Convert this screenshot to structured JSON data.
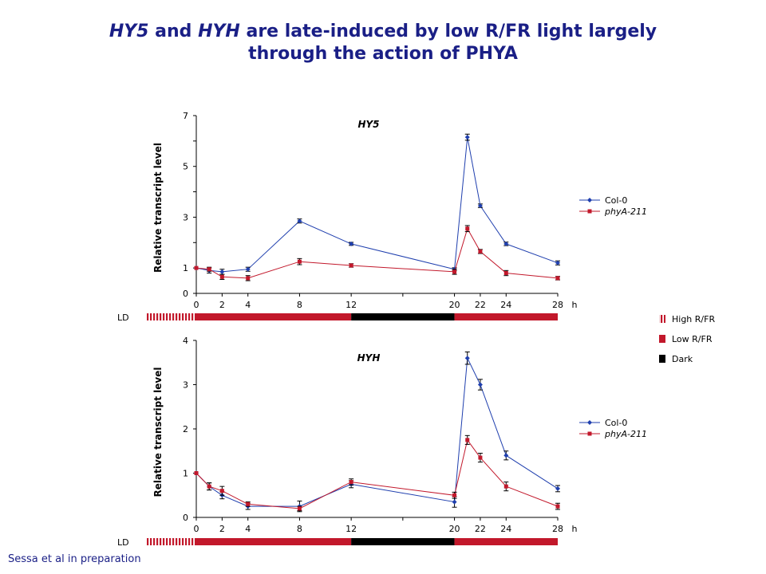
{
  "header": {
    "title_gene1": "HY5",
    "title_and": " and ",
    "title_gene2": "HYH",
    "title_rest1": " are late-induced by low R/FR light largely",
    "title_line2": "through the action of PHYA"
  },
  "footer": {
    "credit": "Sessa et al in preparation"
  },
  "colors": {
    "col0": "#1f3fae",
    "phyA": "#c2182b",
    "high_rf": "#c2182b",
    "dark": "#000000",
    "title": "#1a1f86"
  },
  "light_legend": [
    {
      "label": "High R/FR",
      "icon": "striped-square"
    },
    {
      "label": "Low R/FR",
      "icon": "red-square"
    },
    {
      "label": "Dark",
      "icon": "black-square"
    }
  ],
  "light_bar": {
    "label": "LD",
    "segments": [
      {
        "type": "High R/FR",
        "from": -4,
        "to": 0
      },
      {
        "type": "Low R/FR",
        "from": 0,
        "to": 12
      },
      {
        "type": "Dark",
        "from": 12,
        "to": 20
      },
      {
        "type": "Low R/FR",
        "from": 20,
        "to": 28
      }
    ]
  },
  "chart_data": [
    {
      "type": "line",
      "title": "HY5",
      "ylabel": "Relative transcript level",
      "xunit": "h",
      "xlim": [
        0,
        28
      ],
      "ylim": [
        0,
        7
      ],
      "yticks": [
        0,
        1,
        3,
        5,
        7
      ],
      "yminor": [
        2,
        4,
        6
      ],
      "xticks": [
        0,
        2,
        4,
        8,
        12,
        20,
        22,
        24,
        28
      ],
      "xminor": [
        16
      ],
      "series": [
        {
          "name": "Col-0",
          "x": [
            0,
            1,
            2,
            4,
            8,
            12,
            20,
            21,
            22,
            24,
            28
          ],
          "y": [
            1.0,
            0.9,
            0.85,
            0.95,
            2.85,
            1.95,
            0.95,
            6.15,
            3.45,
            1.95,
            1.2
          ],
          "err": [
            0,
            0.1,
            0.1,
            0.08,
            0.08,
            0.06,
            0.06,
            0.12,
            0.07,
            0.07,
            0.08
          ]
        },
        {
          "name": "phyA-211",
          "x": [
            0,
            1,
            2,
            4,
            8,
            12,
            20,
            21,
            22,
            24,
            28
          ],
          "y": [
            1.0,
            0.95,
            0.65,
            0.6,
            1.25,
            1.1,
            0.85,
            2.55,
            1.65,
            0.8,
            0.6
          ],
          "err": [
            0,
            0.08,
            0.1,
            0.1,
            0.12,
            0.07,
            0.1,
            0.12,
            0.08,
            0.1,
            0.07
          ]
        }
      ]
    },
    {
      "type": "line",
      "title": "HYH",
      "ylabel": "Relative transcript level",
      "xunit": "h",
      "xlim": [
        0,
        28
      ],
      "ylim": [
        0,
        4
      ],
      "yticks": [
        0,
        1,
        2,
        3,
        4
      ],
      "yminor": [],
      "xticks": [
        0,
        2,
        4,
        8,
        12,
        20,
        22,
        24,
        28
      ],
      "xminor": [
        16
      ],
      "series": [
        {
          "name": "Col-0",
          "x": [
            0,
            1,
            2,
            4,
            8,
            12,
            20,
            21,
            22,
            24,
            28
          ],
          "y": [
            1.0,
            0.7,
            0.5,
            0.25,
            0.25,
            0.75,
            0.35,
            3.6,
            3.0,
            1.4,
            0.65
          ],
          "err": [
            0,
            0.08,
            0.08,
            0.07,
            0.12,
            0.08,
            0.12,
            0.14,
            0.12,
            0.1,
            0.07
          ]
        },
        {
          "name": "phyA-211",
          "x": [
            0,
            1,
            2,
            4,
            8,
            12,
            20,
            21,
            22,
            24,
            28
          ],
          "y": [
            1.0,
            0.7,
            0.6,
            0.3,
            0.2,
            0.8,
            0.5,
            1.75,
            1.35,
            0.7,
            0.25
          ],
          "err": [
            0,
            0.08,
            0.1,
            0.05,
            0.05,
            0.07,
            0.07,
            0.1,
            0.1,
            0.1,
            0.07
          ]
        }
      ]
    }
  ]
}
